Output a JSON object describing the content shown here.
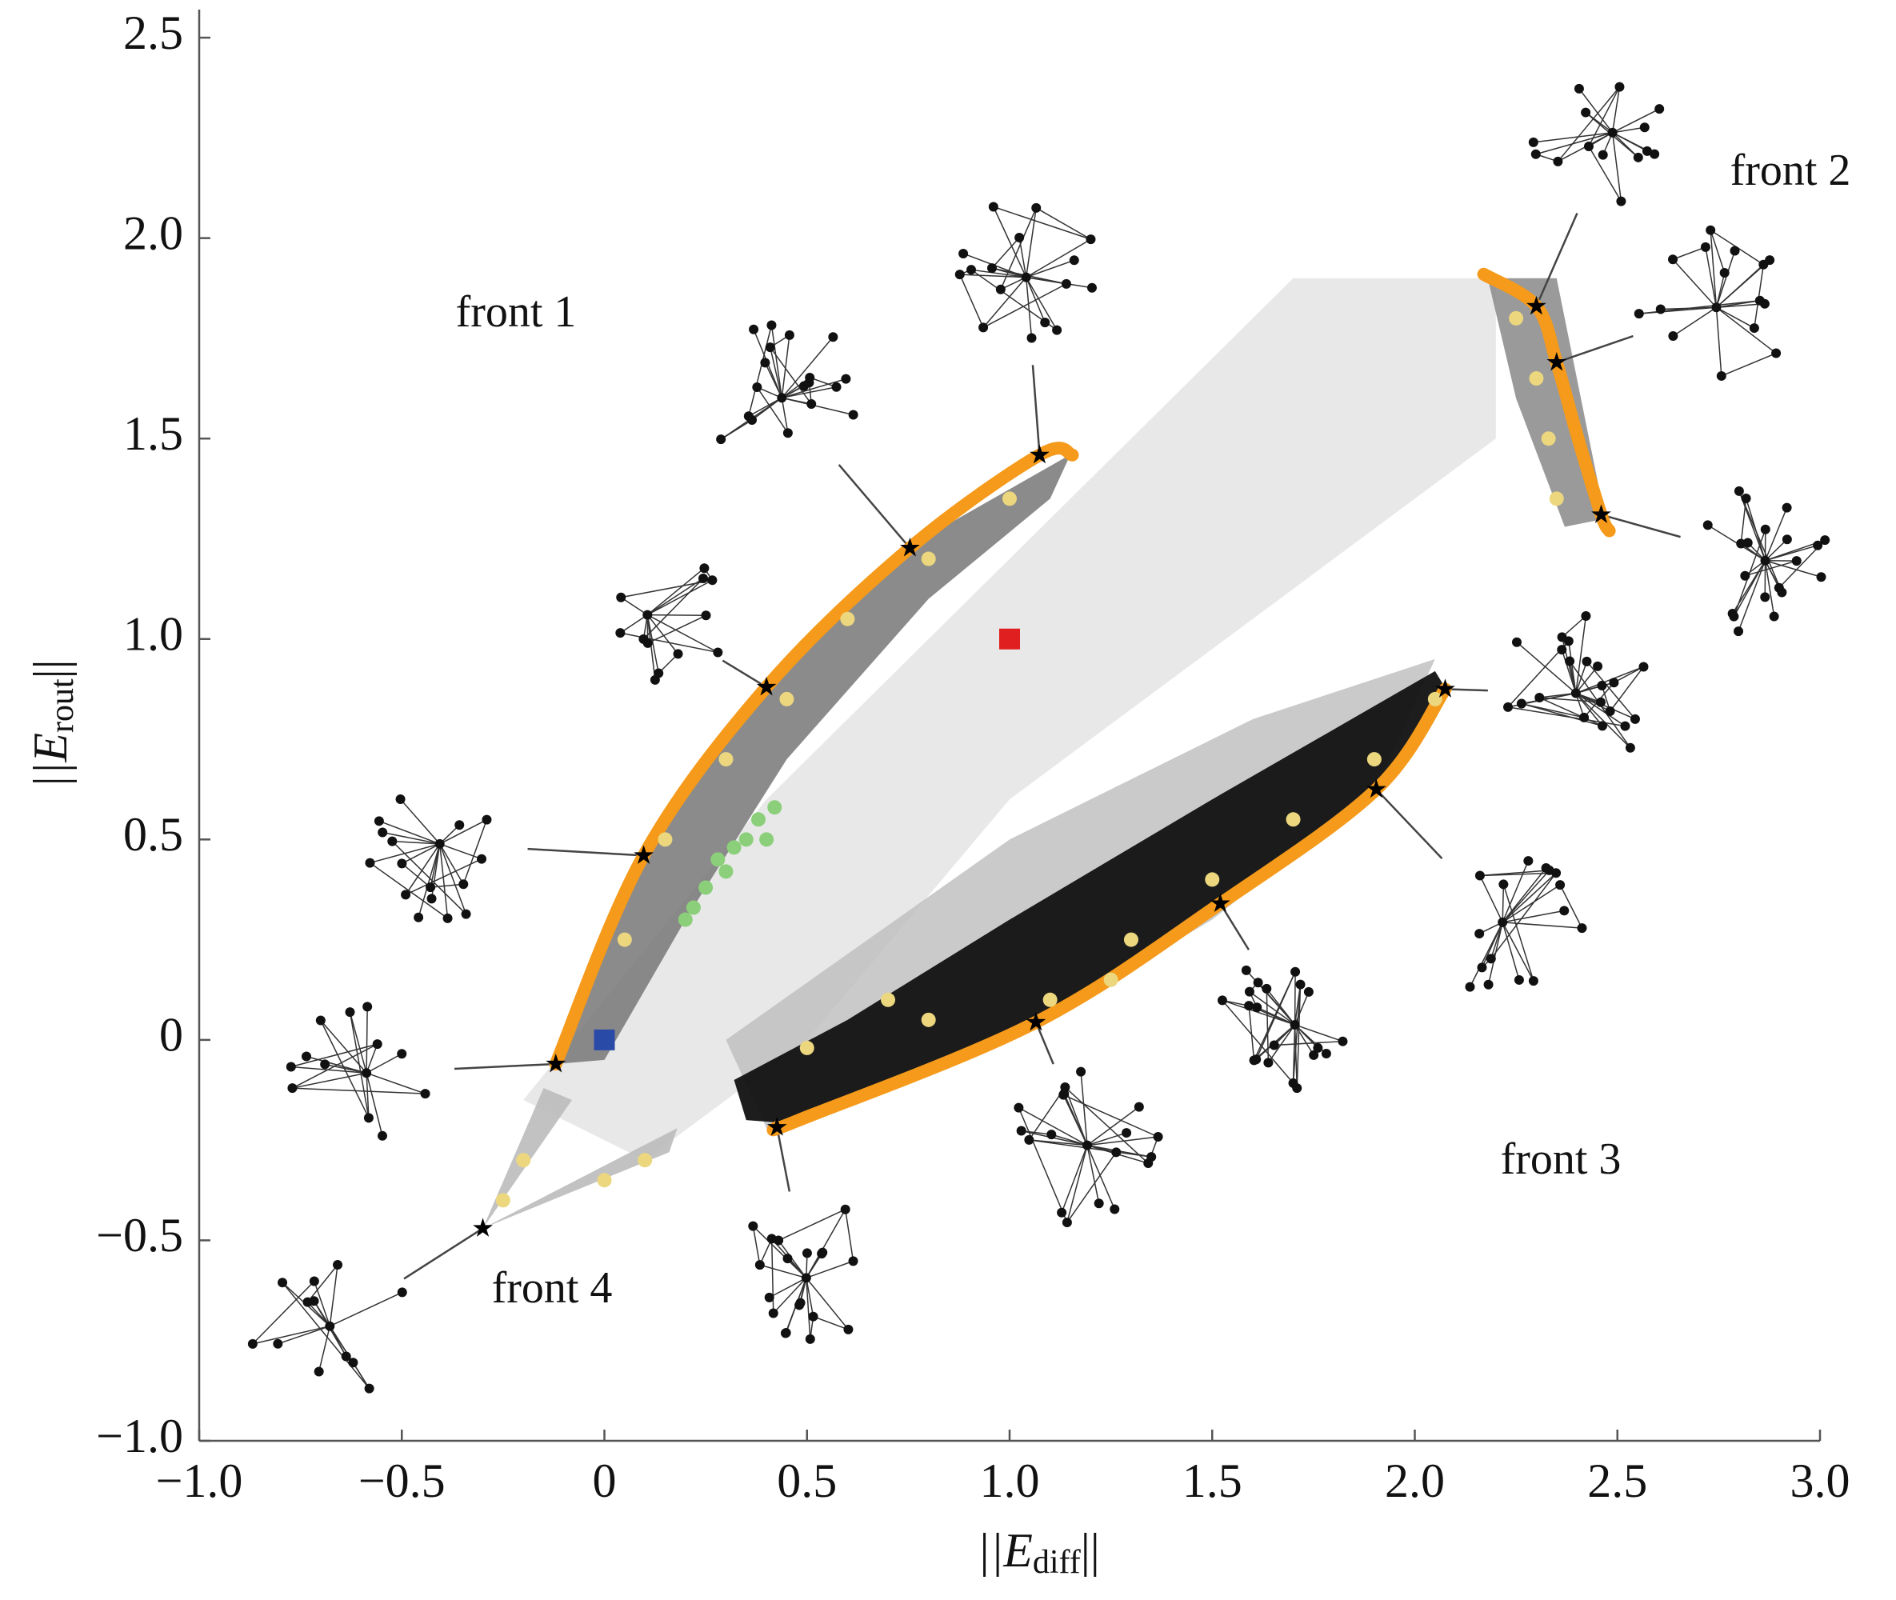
{
  "chart_data": {
    "type": "scatter",
    "xlabel": [
      "||E",
      "diff",
      "||"
    ],
    "ylabel": [
      "||E",
      "rout",
      "||"
    ],
    "xlim": [
      -1,
      3
    ],
    "ylim": [
      -1,
      2.57
    ],
    "xticks": [
      {
        "value": -1,
        "label": "−1.0"
      },
      {
        "value": -0.5,
        "label": "−0.5"
      },
      0,
      0.5,
      {
        "value": 1,
        "label": "1.0"
      },
      1.5,
      {
        "value": 2,
        "label": "2.0"
      },
      2.5,
      {
        "value": 3,
        "label": "3.0"
      }
    ],
    "yticks": [
      {
        "value": -1,
        "label": "−1.0"
      },
      {
        "value": -0.5,
        "label": "−0.5"
      },
      0,
      0.5,
      {
        "value": 1,
        "label": "1.0"
      },
      1.5,
      {
        "value": 2,
        "label": "2.0"
      },
      2.5
    ],
    "annotations": [
      "front 1",
      "front 2",
      "front 3",
      "front 4"
    ],
    "series": [
      {
        "marker": "curve",
        "color": "#f59a1a",
        "x": [
          -0.12,
          0.097,
          0.4,
          0.754,
          1.074,
          1.155
        ],
        "values": [
          -0.06,
          0.46,
          0.88,
          1.227,
          1.459,
          1.459
        ]
      },
      {
        "marker": "curve",
        "color": "#f59a1a",
        "x": [
          2.17,
          2.3,
          2.35,
          2.4,
          2.46,
          2.48
        ],
        "values": [
          1.91,
          1.83,
          1.69,
          1.51,
          1.31,
          1.27
        ]
      },
      {
        "marker": "curve",
        "color": "#f59a1a",
        "x": [
          0.426,
          0.48,
          1.065,
          1.52,
          1.905,
          2.075
        ],
        "values": [
          -0.218,
          -0.2,
          0.044,
          0.34,
          0.625,
          0.875
        ]
      },
      {
        "marker": "circle",
        "color": "#ecd77e",
        "x": [
          0.05,
          0.15,
          0.3,
          0.45,
          0.6,
          0.8,
          1.0,
          0.5,
          0.8,
          1.1,
          1.3,
          1.5,
          1.7,
          1.9,
          2.05,
          0.7,
          1.25,
          2.25,
          2.3,
          2.33,
          2.35,
          -0.25,
          -0.2,
          0.0,
          0.1
        ],
        "values": [
          0.25,
          0.5,
          0.7,
          0.85,
          1.05,
          1.2,
          1.35,
          -0.02,
          0.05,
          0.1,
          0.25,
          0.4,
          0.55,
          0.7,
          0.85,
          0.1,
          0.15,
          1.8,
          1.65,
          1.5,
          1.35,
          -0.4,
          -0.3,
          -0.35,
          -0.3
        ]
      },
      {
        "marker": "circle",
        "color": "#8ccf7a",
        "x": [
          0.2,
          0.25,
          0.28,
          0.32,
          0.35,
          0.38,
          0.42,
          0.3,
          0.22,
          0.4
        ],
        "values": [
          0.3,
          0.38,
          0.45,
          0.48,
          0.5,
          0.55,
          0.58,
          0.42,
          0.33,
          0.5
        ]
      },
      {
        "marker": "square",
        "color": "#e02020",
        "x": [
          1
        ],
        "values": [
          1
        ]
      },
      {
        "marker": "square",
        "color": "#2a4aa8",
        "x": [
          0
        ],
        "values": [
          0
        ]
      },
      {
        "marker": "star",
        "color": "#000000",
        "x": [
          -0.12,
          0.097,
          0.4,
          0.754,
          1.074,
          2.3,
          2.35,
          2.46,
          2.075,
          1.905,
          1.52,
          1.065,
          0.426,
          -0.3
        ],
        "values": [
          -0.06,
          0.46,
          0.88,
          1.227,
          1.459,
          1.83,
          1.69,
          1.31,
          0.875,
          0.625,
          0.34,
          0.044,
          -0.218,
          -0.47
        ]
      }
    ]
  }
}
